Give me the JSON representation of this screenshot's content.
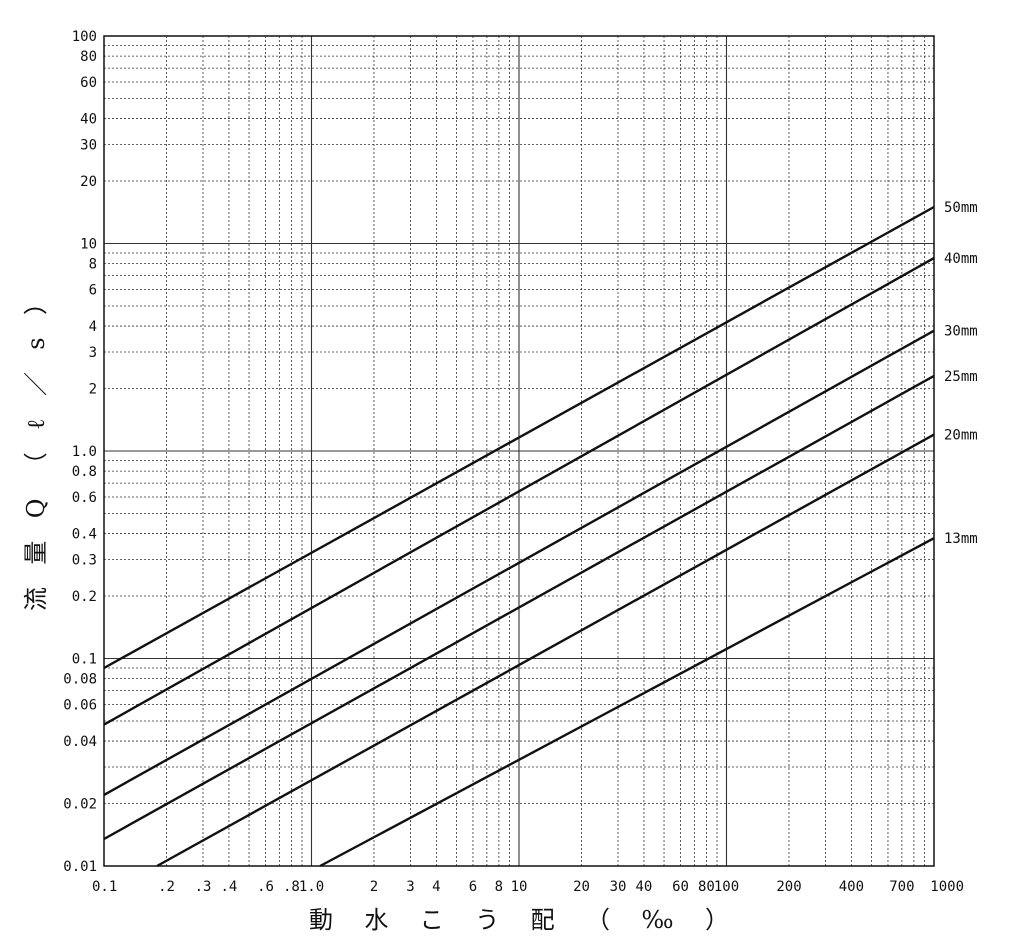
{
  "chart_data": {
    "type": "line",
    "title": "",
    "xlabel": "動水こう配（‰）",
    "ylabel": "流量Q（ℓ／s）",
    "x_scale": "log",
    "y_scale": "log",
    "xlim": [
      0.1,
      1000
    ],
    "ylim": [
      0.01,
      100
    ],
    "grid": true,
    "x_tick_labels": [
      {
        "value": 0.1,
        "label": "0.1"
      },
      {
        "value": 0.2,
        "label": ".2"
      },
      {
        "value": 0.3,
        "label": ".3"
      },
      {
        "value": 0.4,
        "label": ".4"
      },
      {
        "value": 0.6,
        "label": ".6"
      },
      {
        "value": 0.8,
        "label": ".8"
      },
      {
        "value": 1,
        "label": "1.0"
      },
      {
        "value": 2,
        "label": "2"
      },
      {
        "value": 3,
        "label": "3"
      },
      {
        "value": 4,
        "label": "4"
      },
      {
        "value": 6,
        "label": "6"
      },
      {
        "value": 8,
        "label": "8"
      },
      {
        "value": 10,
        "label": "10"
      },
      {
        "value": 20,
        "label": "20"
      },
      {
        "value": 30,
        "label": "30"
      },
      {
        "value": 40,
        "label": "40"
      },
      {
        "value": 60,
        "label": "60"
      },
      {
        "value": 80,
        "label": "80"
      },
      {
        "value": 100,
        "label": "100"
      },
      {
        "value": 200,
        "label": "200"
      },
      {
        "value": 400,
        "label": "400"
      },
      {
        "value": 700,
        "label": "700"
      },
      {
        "value": 1000,
        "label": "1000"
      }
    ],
    "y_tick_labels": [
      {
        "value": 0.01,
        "label": "0.01"
      },
      {
        "value": 0.02,
        "label": "0.02"
      },
      {
        "value": 0.04,
        "label": "0.04"
      },
      {
        "value": 0.06,
        "label": "0.06"
      },
      {
        "value": 0.08,
        "label": "0.08"
      },
      {
        "value": 0.1,
        "label": "0.1"
      },
      {
        "value": 0.2,
        "label": "0.2"
      },
      {
        "value": 0.3,
        "label": "0.3"
      },
      {
        "value": 0.4,
        "label": "0.4"
      },
      {
        "value": 0.6,
        "label": "0.6"
      },
      {
        "value": 0.8,
        "label": "0.8"
      },
      {
        "value": 1.0,
        "label": "1.0"
      },
      {
        "value": 2,
        "label": "2"
      },
      {
        "value": 3,
        "label": "3"
      },
      {
        "value": 4,
        "label": "4"
      },
      {
        "value": 6,
        "label": "6"
      },
      {
        "value": 8,
        "label": "8"
      },
      {
        "value": 10,
        "label": "10"
      },
      {
        "value": 20,
        "label": "20"
      },
      {
        "value": 30,
        "label": "30"
      },
      {
        "value": 40,
        "label": "40"
      },
      {
        "value": 60,
        "label": "60"
      },
      {
        "value": 80,
        "label": "80"
      },
      {
        "value": 100,
        "label": "100"
      }
    ],
    "series": [
      {
        "name": "50mm",
        "x": [
          0.1,
          1000
        ],
        "y": [
          0.09,
          15
        ]
      },
      {
        "name": "40mm",
        "x": [
          0.1,
          1000
        ],
        "y": [
          0.048,
          8.5
        ]
      },
      {
        "name": "30mm",
        "x": [
          0.1,
          1000
        ],
        "y": [
          0.022,
          3.8
        ]
      },
      {
        "name": "25mm",
        "x": [
          0.1,
          1000
        ],
        "y": [
          0.0135,
          2.3
        ]
      },
      {
        "name": "20mm",
        "x": [
          0.18,
          1000
        ],
        "y": [
          0.01,
          1.2
        ]
      },
      {
        "name": "13mm",
        "x": [
          1.1,
          1000
        ],
        "y": [
          0.01,
          0.38
        ]
      }
    ]
  }
}
